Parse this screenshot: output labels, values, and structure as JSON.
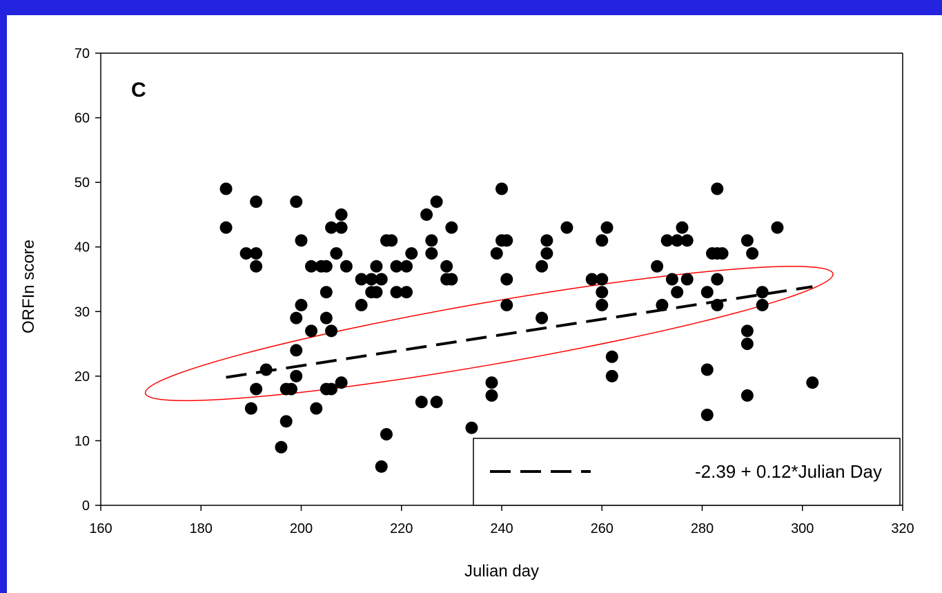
{
  "chart_data": {
    "type": "scatter",
    "panel_label": "C",
    "xlabel": "Julian day",
    "ylabel": "ORFIn score",
    "xlim": [
      160,
      320
    ],
    "ylim": [
      0,
      70
    ],
    "xticks": [
      160,
      180,
      200,
      220,
      240,
      260,
      280,
      300,
      320
    ],
    "yticks": [
      0,
      10,
      20,
      30,
      40,
      50,
      60,
      70
    ],
    "grid": false,
    "legend_position": "bottom-right",
    "points": [
      [
        185,
        49
      ],
      [
        185,
        43
      ],
      [
        189,
        39
      ],
      [
        191,
        47
      ],
      [
        191,
        39
      ],
      [
        191,
        37
      ],
      [
        190,
        15
      ],
      [
        191,
        18
      ],
      [
        193,
        21
      ],
      [
        196,
        9
      ],
      [
        197,
        18
      ],
      [
        197,
        13
      ],
      [
        198,
        18
      ],
      [
        199,
        47
      ],
      [
        199,
        29
      ],
      [
        199,
        24
      ],
      [
        199,
        20
      ],
      [
        200,
        41
      ],
      [
        200,
        31
      ],
      [
        202,
        37
      ],
      [
        202,
        27
      ],
      [
        203,
        15
      ],
      [
        204,
        37
      ],
      [
        205,
        37
      ],
      [
        205,
        33
      ],
      [
        205,
        29
      ],
      [
        205,
        18
      ],
      [
        206,
        43
      ],
      [
        206,
        27
      ],
      [
        206,
        18
      ],
      [
        207,
        39
      ],
      [
        208,
        45
      ],
      [
        208,
        43
      ],
      [
        208,
        19
      ],
      [
        209,
        37
      ],
      [
        212,
        35
      ],
      [
        212,
        31
      ],
      [
        214,
        35
      ],
      [
        214,
        33
      ],
      [
        215,
        37
      ],
      [
        215,
        33
      ],
      [
        216,
        35
      ],
      [
        216,
        6
      ],
      [
        217,
        41
      ],
      [
        217,
        11
      ],
      [
        218,
        41
      ],
      [
        219,
        37
      ],
      [
        219,
        33
      ],
      [
        221,
        37
      ],
      [
        221,
        33
      ],
      [
        222,
        39
      ],
      [
        224,
        16
      ],
      [
        225,
        45
      ],
      [
        226,
        41
      ],
      [
        226,
        39
      ],
      [
        227,
        47
      ],
      [
        227,
        16
      ],
      [
        229,
        37
      ],
      [
        229,
        35
      ],
      [
        230,
        43
      ],
      [
        230,
        35
      ],
      [
        234,
        12
      ],
      [
        238,
        19
      ],
      [
        238,
        17
      ],
      [
        239,
        39
      ],
      [
        240,
        49
      ],
      [
        240,
        41
      ],
      [
        241,
        41
      ],
      [
        241,
        35
      ],
      [
        241,
        31
      ],
      [
        248,
        37
      ],
      [
        248,
        29
      ],
      [
        249,
        41
      ],
      [
        249,
        39
      ],
      [
        253,
        43
      ],
      [
        258,
        35
      ],
      [
        260,
        41
      ],
      [
        260,
        35
      ],
      [
        260,
        33
      ],
      [
        260,
        31
      ],
      [
        261,
        43
      ],
      [
        262,
        23
      ],
      [
        262,
        20
      ],
      [
        271,
        37
      ],
      [
        272,
        31
      ],
      [
        273,
        41
      ],
      [
        274,
        35
      ],
      [
        275,
        41
      ],
      [
        275,
        33
      ],
      [
        276,
        43
      ],
      [
        277,
        41
      ],
      [
        277,
        35
      ],
      [
        281,
        33
      ],
      [
        281,
        21
      ],
      [
        281,
        14
      ],
      [
        282,
        39
      ],
      [
        283,
        49
      ],
      [
        283,
        39
      ],
      [
        283,
        35
      ],
      [
        283,
        31
      ],
      [
        284,
        39
      ],
      [
        289,
        41
      ],
      [
        289,
        27
      ],
      [
        289,
        25
      ],
      [
        289,
        17
      ],
      [
        290,
        39
      ],
      [
        292,
        33
      ],
      [
        292,
        31
      ],
      [
        295,
        43
      ],
      [
        302,
        19
      ]
    ],
    "regression": {
      "intercept": -2.39,
      "slope": 0.12,
      "x_range": [
        185,
        302
      ],
      "style": "dashed",
      "color": "#000000",
      "label": "-2.39 + 0.12*Julian Day"
    },
    "annotation_ellipse": {
      "color": "#ff0000"
    },
    "colors": {
      "points": "#000000",
      "background": "#2323e0",
      "plot_bg": "#ffffff"
    }
  }
}
